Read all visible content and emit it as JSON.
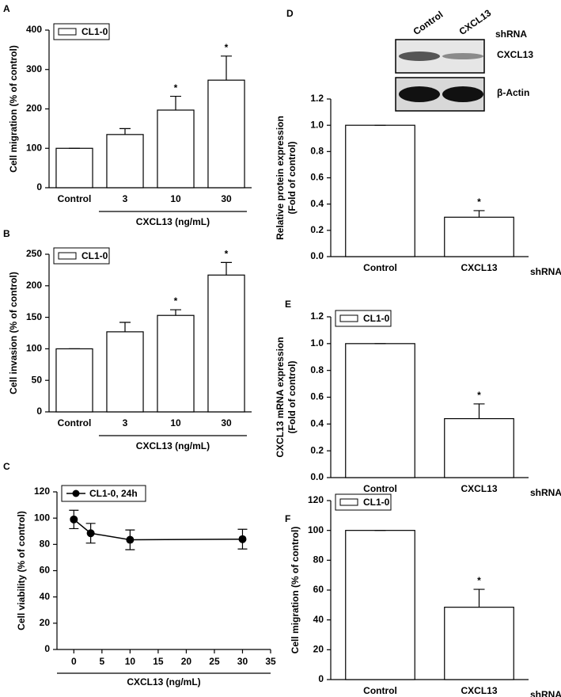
{
  "chart_data": [
    {
      "type": "bar",
      "panel": "A",
      "ylabel": [
        "Cell migration (% of control)"
      ],
      "categories": [
        "Control",
        "3",
        "10",
        "30"
      ],
      "series": [
        {
          "name": "CL1-0",
          "color": "#ffffff",
          "values": [
            100,
            135,
            197,
            273
          ],
          "errors": [
            0,
            15,
            35,
            61
          ]
        }
      ],
      "significance": [
        null,
        null,
        "*",
        "*"
      ],
      "group_label": "CXCL13 (ng/mL)",
      "ylim": [
        0,
        400
      ],
      "yticks": [
        0,
        100,
        200,
        300,
        400
      ]
    },
    {
      "type": "bar",
      "panel": "B",
      "ylabel": [
        "Cell invasion (% of control)"
      ],
      "categories": [
        "Control",
        "3",
        "10",
        "30"
      ],
      "series": [
        {
          "name": "CL1-0",
          "color": "#ffffff",
          "values": [
            100,
            127,
            153,
            217
          ],
          "errors": [
            0,
            15,
            9,
            20
          ]
        }
      ],
      "significance": [
        null,
        null,
        "*",
        "*"
      ],
      "group_label": "CXCL13 (ng/mL)",
      "ylim": [
        0,
        250
      ],
      "yticks": [
        0,
        50,
        100,
        150,
        200,
        250
      ]
    },
    {
      "type": "line",
      "panel": "C",
      "ylabel": [
        "Cell viability (% of control)"
      ],
      "xlabel": "CXCL13 (ng/mL)",
      "x": [
        0,
        3,
        10,
        30
      ],
      "series": [
        {
          "name": "CL1-0, 24h",
          "color": "#000000",
          "values": [
            99,
            88.5,
            83.5,
            84
          ],
          "errors": [
            7,
            7.5,
            7.5,
            7.5
          ]
        }
      ],
      "xlim": [
        -3,
        35
      ],
      "xticks": [
        0,
        5,
        10,
        15,
        20,
        25,
        30,
        35
      ],
      "ylim": [
        0,
        120
      ],
      "yticks": [
        0,
        20,
        40,
        60,
        80,
        100,
        120
      ]
    },
    {
      "type": "bar",
      "panel": "D",
      "ylabel": [
        "Relative protein expression",
        "(Fold of control)"
      ],
      "categories": [
        "Control",
        "CXCL13"
      ],
      "series": [
        {
          "color": "#ffffff",
          "values": [
            1.0,
            0.3
          ],
          "errors": [
            0,
            0.05
          ]
        }
      ],
      "significance": [
        null,
        "*"
      ],
      "group_label": "shRNA",
      "blot": {
        "lanes": [
          "Control",
          "CXCL13"
        ],
        "group": "shRNA",
        "bands": [
          "CXCL13",
          "β-Actin"
        ]
      },
      "ylim": [
        0,
        1.2
      ],
      "yticks": [
        {
          "value": 0,
          "label": "0.0"
        },
        0.2,
        0.4,
        0.6,
        0.8,
        {
          "value": 1,
          "label": "1.0"
        },
        1.2
      ]
    },
    {
      "type": "bar",
      "panel": "E",
      "ylabel": [
        "CXCL13 mRNA expression",
        "(Fold of control)"
      ],
      "categories": [
        "Control",
        "CXCL13"
      ],
      "series": [
        {
          "name": "CL1-0",
          "color": "#ffffff",
          "values": [
            1.0,
            0.44
          ],
          "errors": [
            0,
            0.11
          ]
        }
      ],
      "significance": [
        null,
        "*"
      ],
      "group_label": "shRNA",
      "ylim": [
        0,
        1.2
      ],
      "yticks": [
        {
          "value": 0,
          "label": "0.0"
        },
        0.2,
        0.4,
        0.6,
        0.8,
        {
          "value": 1,
          "label": "1.0"
        },
        1.2
      ]
    },
    {
      "type": "bar",
      "panel": "F",
      "ylabel": [
        "Cell migration (% of control)"
      ],
      "categories": [
        "Control",
        "CXCL13"
      ],
      "series": [
        {
          "name": "CL1-0",
          "color": "#ffffff",
          "values": [
            100,
            48.5
          ],
          "errors": [
            0,
            12
          ]
        }
      ],
      "significance": [
        null,
        "*"
      ],
      "group_label": "shRNA",
      "ylim": [
        0,
        120
      ],
      "yticks": [
        0,
        20,
        40,
        60,
        80,
        100,
        120
      ]
    }
  ]
}
